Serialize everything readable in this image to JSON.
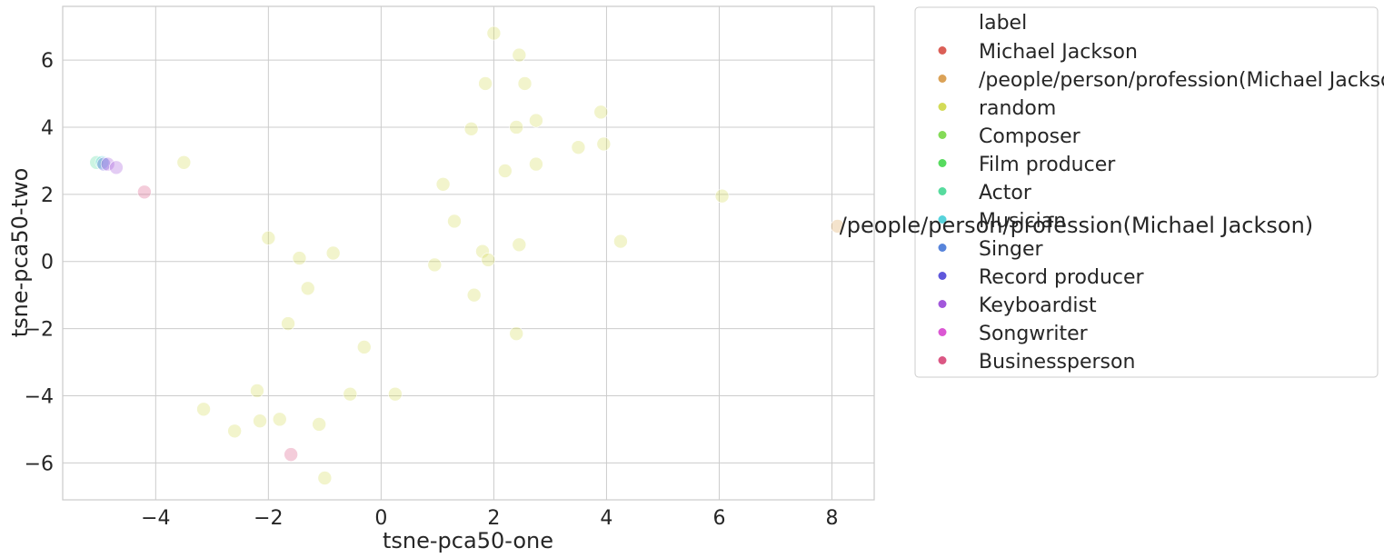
{
  "chart_data": {
    "type": "scatter",
    "xlabel": "tsne-pca50-one",
    "ylabel": "tsne-pca50-two",
    "xlim": [
      -5.65,
      8.75
    ],
    "ylim": [
      -7.1,
      7.6
    ],
    "xticks": [
      -4,
      -2,
      0,
      2,
      4,
      6,
      8
    ],
    "yticks": [
      -6,
      -4,
      -2,
      0,
      2,
      4,
      6
    ],
    "xtick_labels": [
      "−4",
      "−2",
      "0",
      "2",
      "4",
      "6",
      "8"
    ],
    "ytick_labels": [
      "−6",
      "−4",
      "−2",
      "0",
      "2",
      "4",
      "6"
    ],
    "grid": true,
    "legend_placement": "outside-right",
    "legend_title": "label",
    "annotation": {
      "text": "/people/person/profession(Michael Jackson)",
      "x": 8.1,
      "y": 1.05
    },
    "series": [
      {
        "name": "Michael Jackson",
        "color": "#db5f57",
        "points": []
      },
      {
        "name": "/people/person/profession(Michael Jackson)",
        "color": "#dba257",
        "points": [
          [
            8.1,
            1.05
          ]
        ]
      },
      {
        "name": "random",
        "color": "#d3db57",
        "points": [
          [
            2.0,
            6.8
          ],
          [
            2.45,
            6.15
          ],
          [
            1.85,
            5.3
          ],
          [
            2.55,
            5.3
          ],
          [
            3.9,
            4.45
          ],
          [
            2.75,
            4.2
          ],
          [
            2.4,
            4.0
          ],
          [
            1.6,
            3.95
          ],
          [
            3.5,
            3.4
          ],
          [
            3.95,
            3.5
          ],
          [
            2.75,
            2.9
          ],
          [
            2.2,
            2.7
          ],
          [
            1.1,
            2.3
          ],
          [
            6.05,
            1.95
          ],
          [
            1.3,
            1.2
          ],
          [
            4.25,
            0.6
          ],
          [
            2.45,
            0.5
          ],
          [
            1.8,
            0.3
          ],
          [
            1.9,
            0.05
          ],
          [
            0.95,
            -0.1
          ],
          [
            1.65,
            -1.0
          ],
          [
            2.4,
            -2.15
          ],
          [
            -3.5,
            2.95
          ],
          [
            -2.0,
            0.7
          ],
          [
            -1.45,
            0.1
          ],
          [
            -0.85,
            0.25
          ],
          [
            -1.3,
            -0.8
          ],
          [
            -1.65,
            -1.85
          ],
          [
            -0.3,
            -2.55
          ],
          [
            -0.55,
            -3.95
          ],
          [
            0.25,
            -3.95
          ],
          [
            -2.2,
            -3.85
          ],
          [
            -3.15,
            -4.4
          ],
          [
            -2.15,
            -4.75
          ],
          [
            -1.8,
            -4.7
          ],
          [
            -1.1,
            -4.85
          ],
          [
            -2.6,
            -5.05
          ],
          [
            -1.0,
            -6.45
          ]
        ]
      },
      {
        "name": "Composer",
        "color": "#84db57",
        "points": []
      },
      {
        "name": "Film producer",
        "color": "#57db5f",
        "points": []
      },
      {
        "name": "Actor",
        "color": "#57db9e",
        "points": [
          [
            -5.05,
            2.95
          ]
        ]
      },
      {
        "name": "Musician",
        "color": "#57d3db",
        "points": [
          [
            -4.95,
            2.95
          ]
        ]
      },
      {
        "name": "Singer",
        "color": "#5784db",
        "points": []
      },
      {
        "name": "Record producer",
        "color": "#5f57db",
        "points": [
          [
            -4.92,
            2.9
          ]
        ]
      },
      {
        "name": "Keyboardist",
        "color": "#a257db",
        "points": [
          [
            -4.85,
            2.9
          ],
          [
            -4.7,
            2.8
          ]
        ]
      },
      {
        "name": "Songwriter",
        "color": "#db57d3",
        "points": []
      },
      {
        "name": "Businessperson",
        "color": "#db5784",
        "points": [
          [
            -4.2,
            2.07
          ],
          [
            -1.6,
            -5.75
          ]
        ]
      }
    ]
  }
}
